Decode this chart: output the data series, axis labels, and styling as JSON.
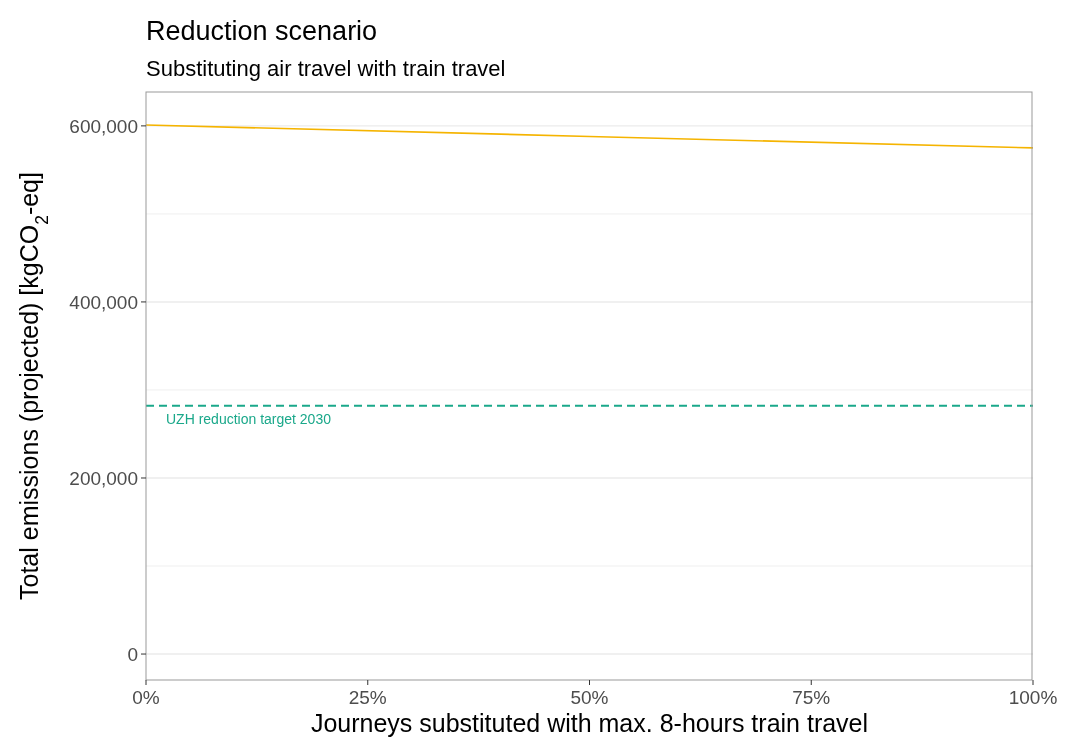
{
  "chart_data": {
    "type": "line",
    "title": "Reduction scenario",
    "subtitle": "Substituting air travel with train travel",
    "xlabel": "Journeys substituted with max. 8-hours train travel",
    "ylabel": "Total emissions (projected) [kgCO$_{2}$-eq]",
    "x": [
      0,
      50,
      100
    ],
    "series": [
      {
        "color": "#f5b400",
        "values": [
          601000,
          588000,
          575000
        ]
      }
    ],
    "xlim": [
      0,
      100
    ],
    "xticks": [
      {
        "value": 0,
        "label": "0%"
      },
      {
        "value": 25,
        "label": "25%"
      },
      {
        "value": 50,
        "label": "50%"
      },
      {
        "value": 75,
        "label": "75%"
      },
      {
        "value": 100,
        "label": "100%"
      }
    ],
    "ylim": [
      -29500,
      638500
    ],
    "yticks": [
      {
        "value": 0,
        "label": "0"
      },
      {
        "value": 100000,
        "label": null
      },
      {
        "value": 200000,
        "label": "200,000"
      },
      {
        "value": 300000,
        "label": null
      },
      {
        "value": 400000,
        "label": "400,000"
      },
      {
        "value": 500000,
        "label": null
      },
      {
        "value": 600000,
        "label": "600,000"
      }
    ],
    "grid": "y",
    "marker": "none",
    "line_style": "solid",
    "ref_lines": [
      {
        "axis": "y",
        "value": 282000,
        "label": "UZH reduction target 2030",
        "color": "#1aa88a",
        "line_style": "dashed"
      }
    ]
  }
}
